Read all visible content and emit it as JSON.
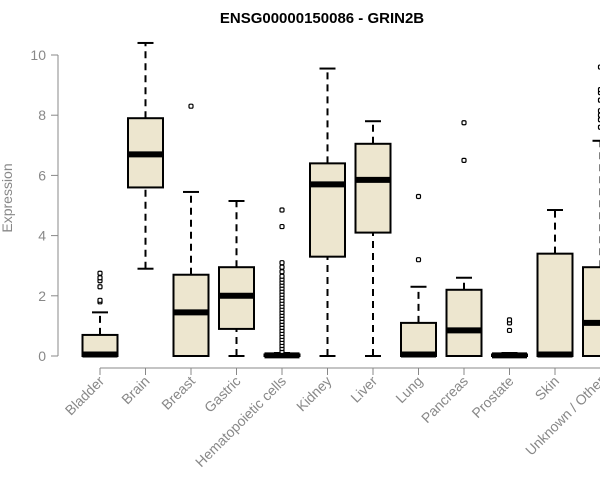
{
  "chart_data": {
    "type": "box",
    "title": "ENSG00000150086 - GRIN2B",
    "xlabel": "",
    "ylabel": "Expression",
    "ylim": [
      0,
      10
    ],
    "yticks": [
      0,
      2,
      4,
      6,
      8,
      10
    ],
    "grid": false,
    "colors": {
      "box_fill": "#ede6cf",
      "axis": "#888888",
      "ink": "#000000"
    },
    "categories": [
      "Bladder",
      "Brain",
      "Breast",
      "Gastric",
      "Hematopoietic cells",
      "Kidney",
      "Liver",
      "Lung",
      "Pancreas",
      "Prostate",
      "Skin",
      "Unknown / Other"
    ],
    "boxes": [
      {
        "min": 0,
        "q1": 0,
        "median": 0.05,
        "q3": 0.7,
        "max": 1.45,
        "outliers": [
          1.8,
          1.85,
          2.3,
          2.5,
          2.6,
          2.75
        ]
      },
      {
        "min": 2.9,
        "q1": 5.6,
        "median": 6.7,
        "q3": 7.9,
        "max": 10.4,
        "outliers": []
      },
      {
        "min": 0,
        "q1": 0,
        "median": 1.45,
        "q3": 2.7,
        "max": 5.45,
        "outliers": [
          8.3
        ]
      },
      {
        "min": 0,
        "q1": 0.9,
        "median": 2.0,
        "q3": 2.95,
        "max": 5.15,
        "outliers": []
      },
      {
        "min": 0,
        "q1": 0,
        "median": 0.02,
        "q3": 0.05,
        "max": 0.1,
        "outliers": [
          0.15,
          0.25,
          0.35,
          0.45,
          0.55,
          0.65,
          0.75,
          0.85,
          0.95,
          1.05,
          1.15,
          1.25,
          1.35,
          1.45,
          1.55,
          1.65,
          1.75,
          1.85,
          1.95,
          2.05,
          2.15,
          2.25,
          2.35,
          2.45,
          2.55,
          2.65,
          2.8,
          2.95,
          3.1,
          4.3,
          4.85
        ]
      },
      {
        "min": 0,
        "q1": 3.3,
        "median": 5.7,
        "q3": 6.4,
        "max": 9.55,
        "outliers": []
      },
      {
        "min": 0,
        "q1": 4.1,
        "median": 5.85,
        "q3": 7.05,
        "max": 7.8,
        "outliers": []
      },
      {
        "min": 0,
        "q1": 0,
        "median": 0.05,
        "q3": 1.1,
        "max": 2.3,
        "outliers": [
          3.2,
          5.3
        ]
      },
      {
        "min": 0,
        "q1": 0,
        "median": 0.85,
        "q3": 2.2,
        "max": 2.6,
        "outliers": [
          6.5,
          7.75
        ]
      },
      {
        "min": 0,
        "q1": 0,
        "median": 0.02,
        "q3": 0.05,
        "max": 0.1,
        "outliers": [
          0.85,
          1.1,
          1.2
        ]
      },
      {
        "min": 0,
        "q1": 0,
        "median": 0.05,
        "q3": 3.4,
        "max": 4.85,
        "outliers": []
      },
      {
        "min": 0,
        "q1": 0,
        "median": 1.1,
        "q3": 2.95,
        "max": 7.15,
        "outliers": [
          7.6,
          7.85,
          8.0,
          8.15,
          8.5,
          8.75,
          8.85,
          9.6
        ]
      }
    ]
  }
}
